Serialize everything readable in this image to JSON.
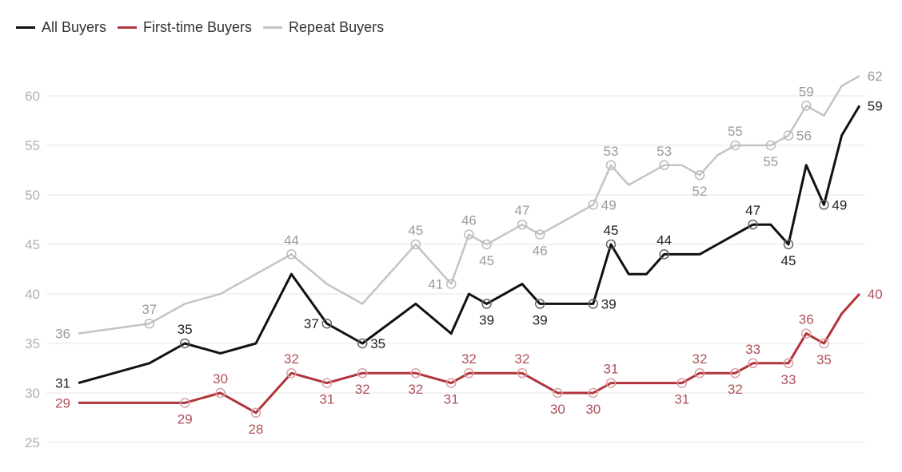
{
  "chart_data": {
    "type": "line",
    "title": "",
    "xlabel": "",
    "ylabel": "",
    "ylim": [
      25,
      62
    ],
    "yticks": [
      25,
      30,
      35,
      40,
      45,
      50,
      55,
      60
    ],
    "grid": "horizontal",
    "legend_placement": "top-left",
    "series": [
      {
        "name": "All Buyers",
        "color": "#111111",
        "values": [
          31,
          null,
          null,
          null,
          33,
          null,
          35,
          null,
          34,
          null,
          35,
          null,
          42,
          null,
          37,
          null,
          35,
          null,
          null,
          39,
          null,
          36,
          40,
          39,
          null,
          41,
          39,
          39,
          null,
          39,
          45,
          42,
          42,
          44,
          44,
          44,
          45,
          46,
          47,
          47,
          45,
          53,
          49,
          56,
          59
        ],
        "labeled": [
          0,
          6,
          14,
          16,
          23,
          26,
          29,
          30,
          33,
          38,
          40,
          42,
          44
        ]
      },
      {
        "name": "First-time Buyers",
        "color": "#b0343a",
        "values": [
          29,
          null,
          null,
          null,
          29,
          null,
          29,
          null,
          30,
          null,
          28,
          null,
          32,
          null,
          31,
          null,
          32,
          null,
          null,
          32,
          null,
          31,
          32,
          32,
          null,
          32,
          31,
          30,
          null,
          30,
          31,
          31,
          31,
          31,
          31,
          32,
          32,
          32,
          33,
          33,
          33,
          36,
          35,
          38,
          40
        ],
        "labeled": [
          0,
          6,
          8,
          10,
          12,
          14,
          16,
          19,
          21,
          22,
          25,
          27,
          29,
          30,
          34,
          35,
          37,
          38,
          40,
          41,
          42,
          44
        ]
      },
      {
        "name": "Repeat Buyers",
        "color": "#c4c4c4",
        "values": [
          36,
          null,
          null,
          null,
          37,
          null,
          39,
          null,
          40,
          null,
          42,
          null,
          44,
          null,
          41,
          null,
          39,
          null,
          null,
          45,
          null,
          41,
          46,
          45,
          null,
          47,
          46,
          47,
          null,
          49,
          53,
          51,
          52,
          53,
          53,
          52,
          54,
          55,
          55,
          55,
          56,
          59,
          58,
          61,
          62
        ],
        "labeled": [
          0,
          4,
          12,
          19,
          21,
          22,
          23,
          25,
          26,
          29,
          30,
          33,
          35,
          37,
          39,
          40,
          41,
          44
        ]
      }
    ]
  }
}
